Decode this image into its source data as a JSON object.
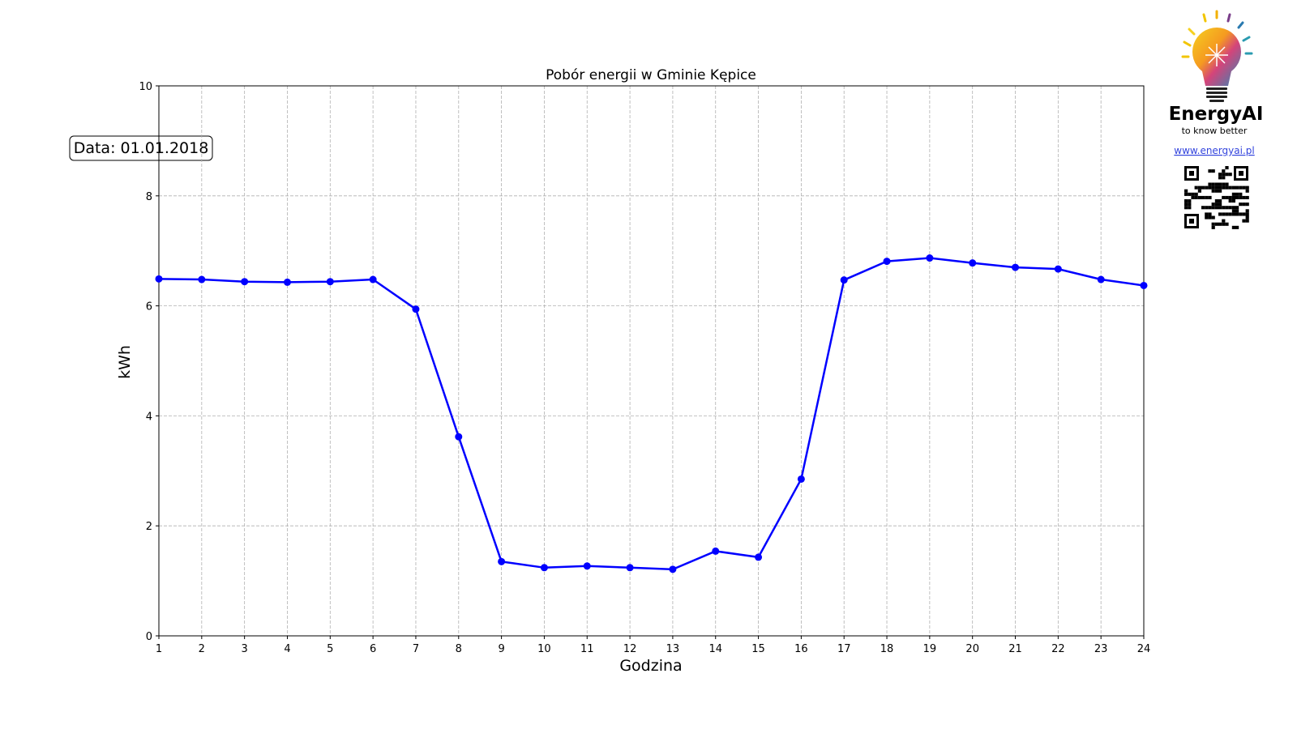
{
  "chart_data": {
    "type": "line",
    "title": "Pobór energii w Gminie Kępice",
    "x_label": "Godzina",
    "y_label": "kWh",
    "annotation": "Data: 01.01.2018",
    "x": [
      1,
      2,
      3,
      4,
      5,
      6,
      7,
      8,
      9,
      10,
      11,
      12,
      13,
      14,
      15,
      16,
      17,
      18,
      19,
      20,
      21,
      22,
      23,
      24
    ],
    "values": [
      6.49,
      6.48,
      6.44,
      6.43,
      6.44,
      6.48,
      5.94,
      3.62,
      1.35,
      1.24,
      1.27,
      1.24,
      1.21,
      1.54,
      1.43,
      2.85,
      6.47,
      6.81,
      6.87,
      6.78,
      6.7,
      6.67,
      6.48,
      6.37
    ],
    "color": "#0000ff",
    "xlim": [
      1,
      24
    ],
    "xticks": [
      1,
      2,
      3,
      4,
      5,
      6,
      7,
      8,
      9,
      10,
      11,
      12,
      13,
      14,
      15,
      16,
      17,
      18,
      19,
      20,
      21,
      22,
      23,
      24
    ],
    "ylim": [
      0,
      10
    ],
    "yticks": [
      0,
      2,
      4,
      6,
      8,
      10
    ],
    "grid": true
  },
  "logo": {
    "name": "EnergyAI",
    "tagline": "to know better",
    "link": "www.energyai.pl"
  }
}
